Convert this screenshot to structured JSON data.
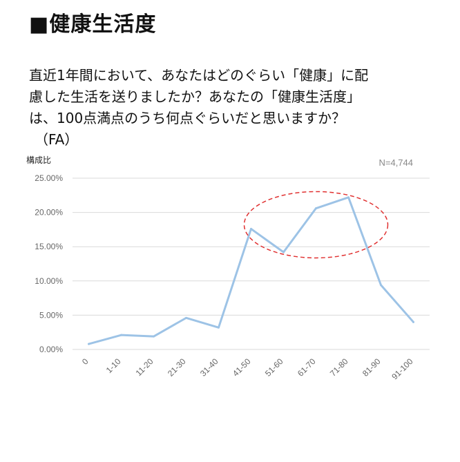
{
  "heading": "■健康生活度",
  "question": {
    "lines": [
      "直近1年間において、あなたはどのぐらい「健康」に配",
      "慮した生活を送りましたか？あなたの「健康生活度」",
      "は、100点満点のうち何点ぐらいだと思いますか？"
    ],
    "note": "（FA）"
  },
  "chart_data": {
    "type": "line",
    "ylabel": "構成比",
    "annotation": "N=4,744",
    "categories": [
      "0",
      "1-10",
      "11-20",
      "21-30",
      "31-40",
      "41-50",
      "51-60",
      "61-70",
      "71-80",
      "81-90",
      "91-100"
    ],
    "series": [
      {
        "values": [
          0.8,
          2.1,
          1.9,
          4.6,
          3.2,
          17.6,
          14.2,
          20.6,
          22.2,
          9.4,
          4.0
        ]
      }
    ],
    "ylim": [
      0,
      25
    ],
    "yticks": [
      "0.00%",
      "5.00%",
      "10.00%",
      "15.00%",
      "20.00%",
      "25.00%"
    ],
    "grid": true,
    "colors": {
      "line": "#9dc3e6",
      "grid": "#d9d9d9",
      "highlight": "#e03030"
    },
    "highlight": {
      "shape": "dashed-ellipse",
      "from_category": "41-50",
      "to_category": "81-90"
    }
  }
}
